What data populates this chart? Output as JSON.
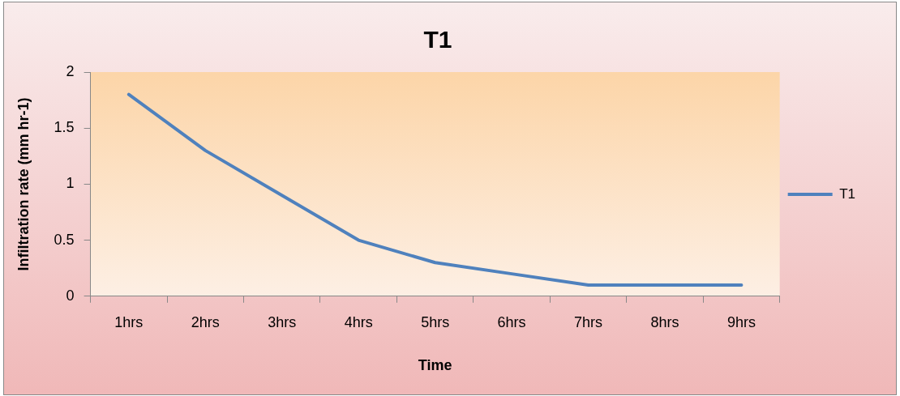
{
  "chart_data": {
    "type": "line",
    "title": "T1",
    "xlabel": "Time",
    "ylabel": "Infiltration rate (mm hr-1)",
    "categories": [
      "1hrs",
      "2hrs",
      "3hrs",
      "4hrs",
      "5hrs",
      "6hrs",
      "7hrs",
      "8hrs",
      "9hrs"
    ],
    "series": [
      {
        "name": "T1",
        "color": "#4f81bd",
        "values": [
          1.8,
          1.3,
          0.9,
          0.5,
          0.3,
          0.2,
          0.1,
          0.1,
          0.1
        ]
      }
    ],
    "ylim": [
      0,
      2
    ],
    "yticks": [
      0,
      0.5,
      1,
      1.5,
      2
    ],
    "grid": false,
    "legend": "right",
    "marker": "none",
    "line_style": "solid"
  }
}
